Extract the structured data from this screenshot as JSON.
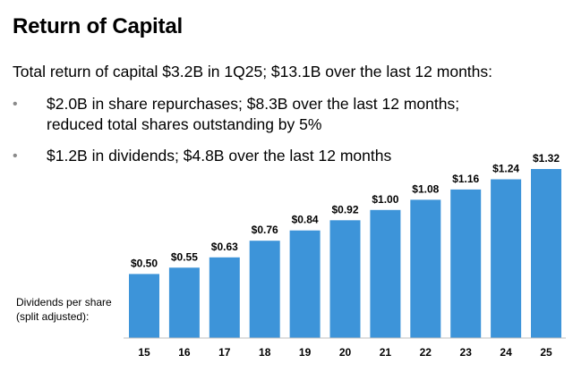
{
  "slide": {
    "title": "Return of Capital",
    "lead": "Total return of capital $3.2B in 1Q25; $13.1B over the last 12 months:",
    "bullets": [
      {
        "marker": "•",
        "lines": [
          "$2.0B in share repurchases; $8.3B over the last 12 months;",
          "reduced total shares outstanding by 5%"
        ]
      },
      {
        "marker": "•",
        "lines": [
          "$1.2B in dividends; $4.8B over the last 12 months"
        ]
      }
    ]
  },
  "chart_data": {
    "type": "bar",
    "title": "",
    "xlabel": "",
    "ylabel": "Dividends per share (split adjusted):",
    "ylabel_lines": [
      "Dividends per share",
      "(split adjusted):"
    ],
    "categories": [
      "15",
      "16",
      "17",
      "18",
      "19",
      "20",
      "21",
      "22",
      "23",
      "24",
      "25"
    ],
    "values": [
      0.5,
      0.55,
      0.63,
      0.76,
      0.84,
      0.92,
      1.0,
      1.08,
      1.16,
      1.24,
      1.32
    ],
    "data_labels": [
      "$0.50",
      "$0.55",
      "$0.63",
      "$0.76",
      "$0.84",
      "$0.92",
      "$1.00",
      "$1.08",
      "$1.16",
      "$1.24",
      "$1.32"
    ],
    "ylim": [
      0,
      1.32
    ],
    "grid": false,
    "color": "#3d94d9"
  }
}
